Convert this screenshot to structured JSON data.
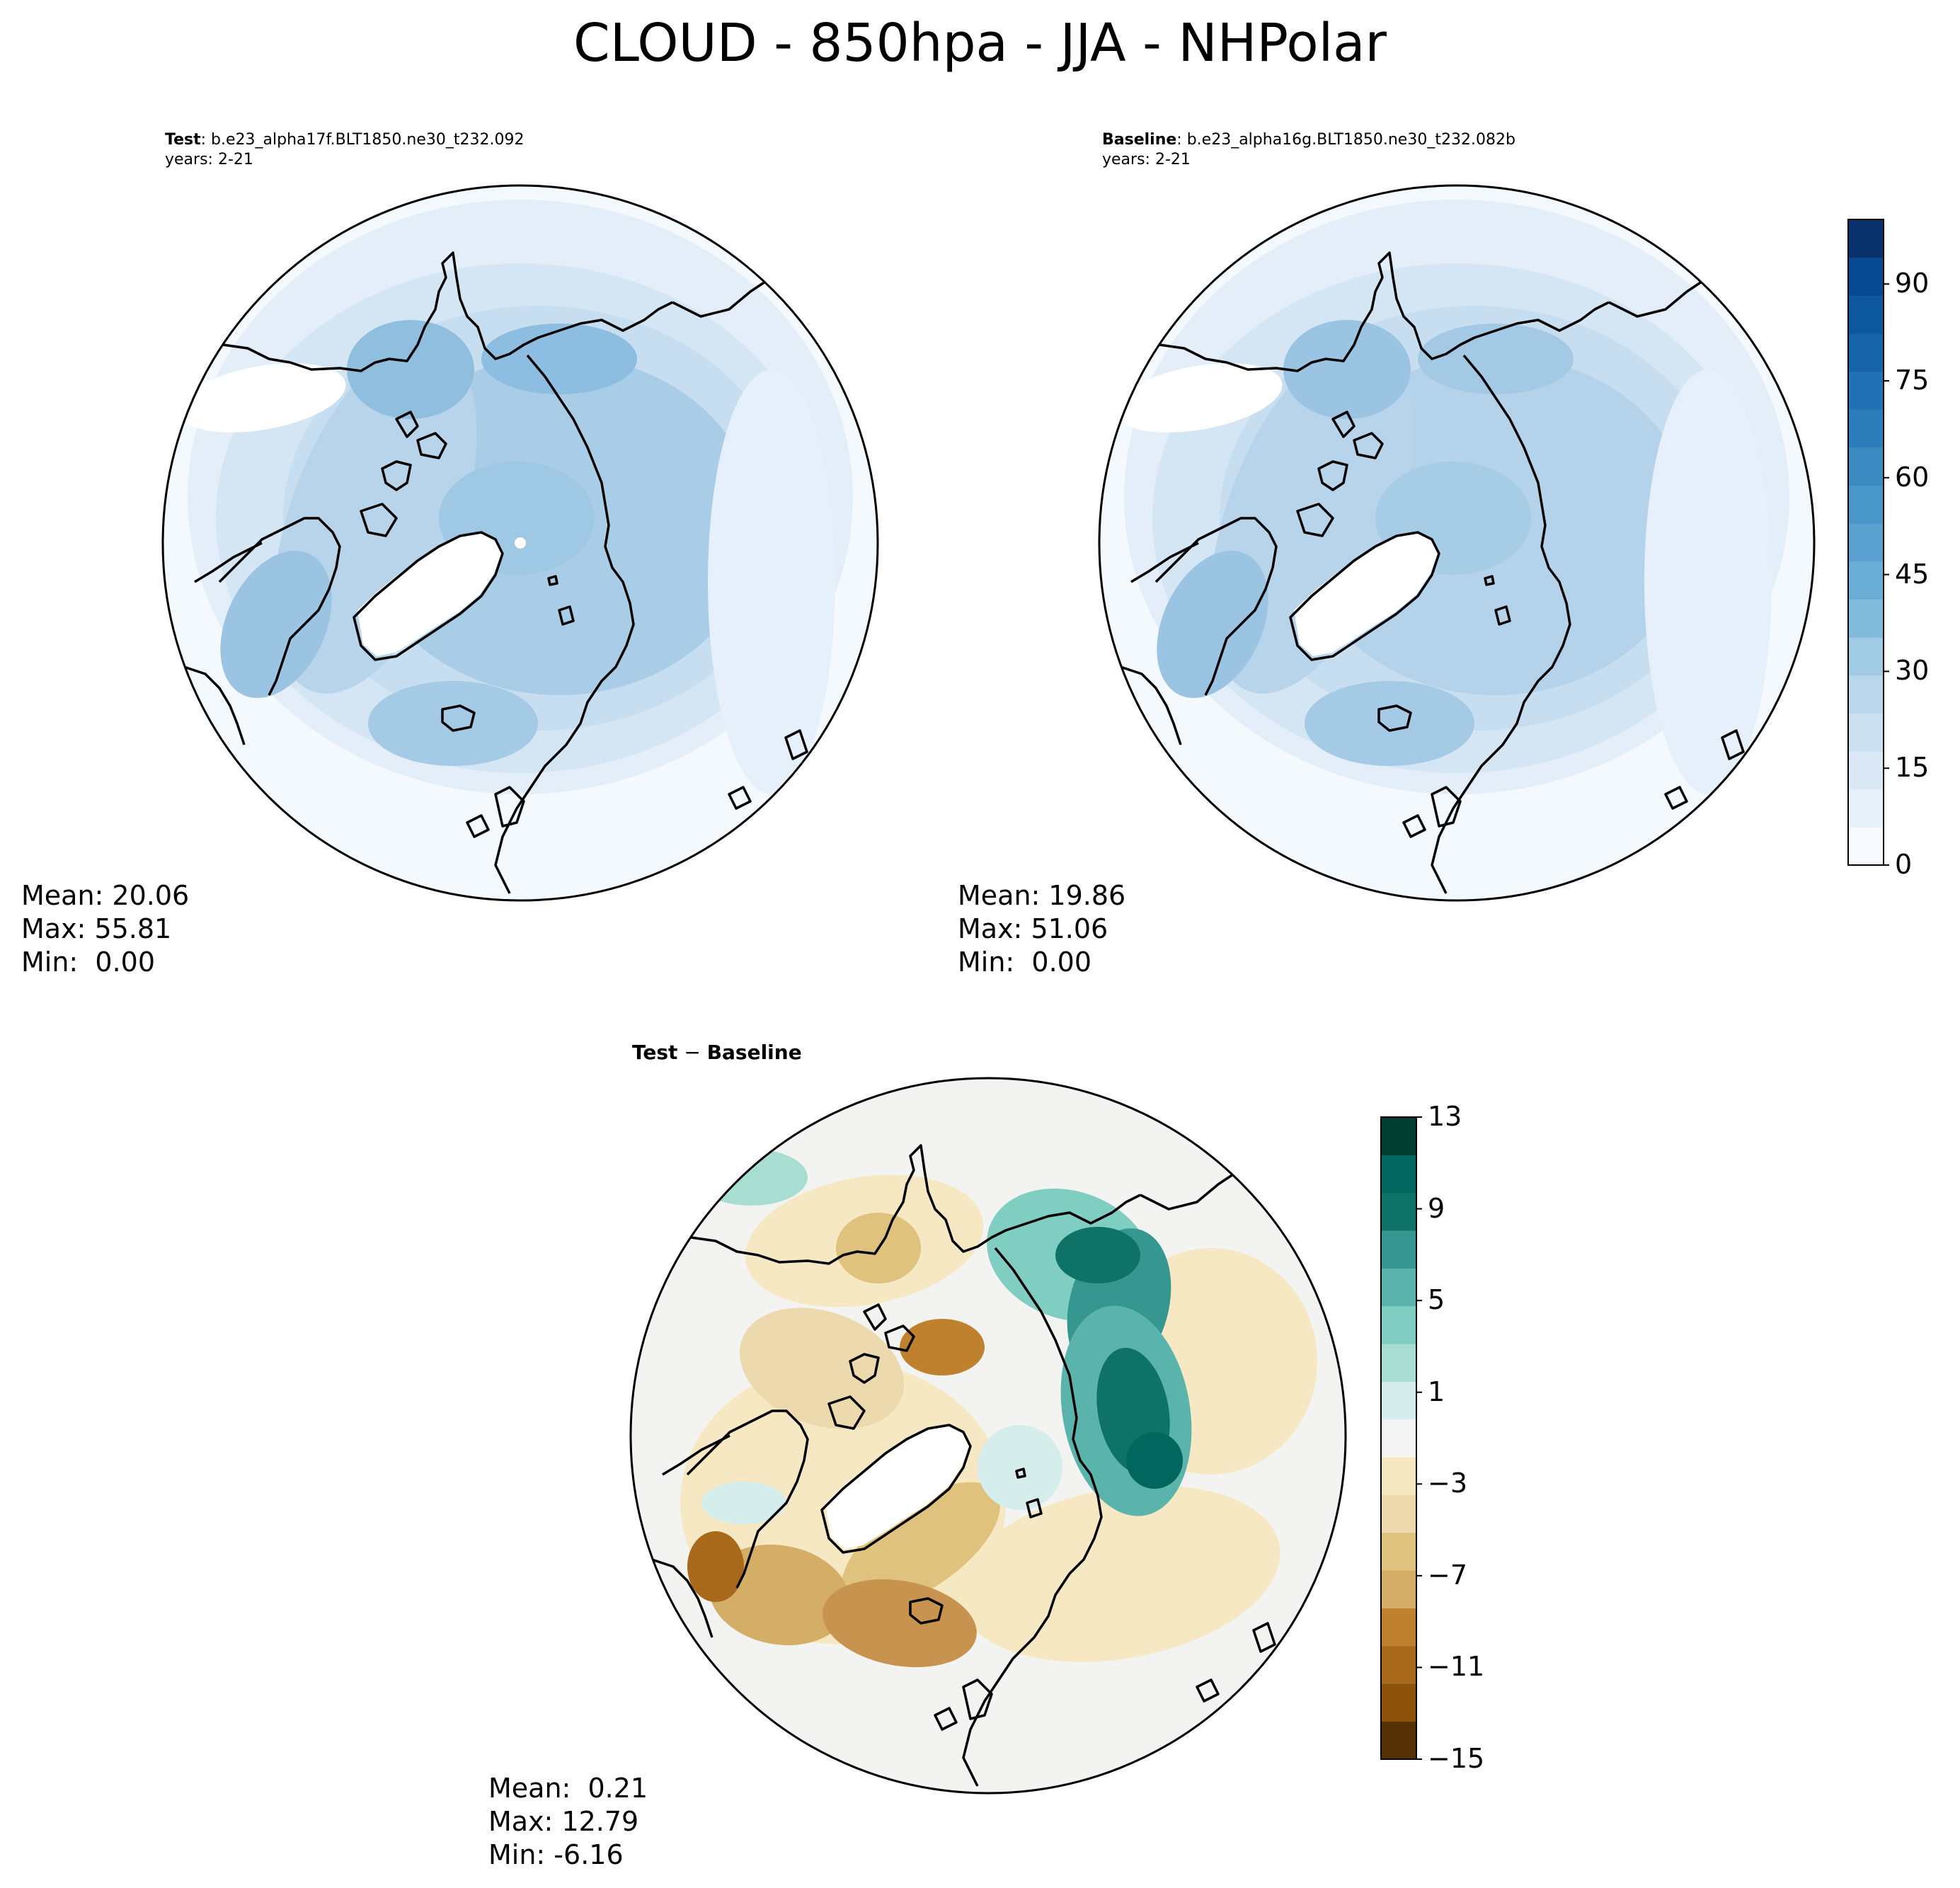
{
  "title": "CLOUD - 850hpa - JJA - NHPolar",
  "panels": {
    "test": {
      "label": "Test",
      "case": ": b.e23_alpha17f.BLT1850.ne30_t232.092",
      "years": "years: 2-21",
      "mean": "Mean: 20.06",
      "max": "Max: 55.81",
      "min": "Min:  0.00"
    },
    "baseline": {
      "label": "Baseline",
      "case": ": b.e23_alpha16g.BLT1850.ne30_t232.082b",
      "years": "years: 2-21",
      "mean": "Mean: 19.86",
      "max": "Max: 51.06",
      "min": "Min:  0.00"
    },
    "diff": {
      "title_a": "Test",
      "title_op": " − ",
      "title_b": "Baseline",
      "mean": "Mean:  0.21",
      "max": "Max: 12.79",
      "min": "Min: -6.16"
    }
  },
  "colorbars": {
    "abs": {
      "ticks": [
        "0",
        "15",
        "30",
        "45",
        "60",
        "75",
        "90"
      ],
      "tick_values": [
        0,
        15,
        30,
        45,
        60,
        75,
        90
      ],
      "range": [
        0,
        100
      ],
      "colormap": "Blues",
      "colors": [
        "#f7fbff",
        "#e8f1fa",
        "#dbe9f6",
        "#cde0f2",
        "#bad6eb",
        "#a0cbe2",
        "#82badb",
        "#6aaed6",
        "#5aa1cf",
        "#4a97c9",
        "#3b8bc2",
        "#2d7dbb",
        "#2171b5",
        "#1764ab",
        "#0d579f",
        "#084a91",
        "#08306b"
      ]
    },
    "diff": {
      "ticks": [
        "13",
        "9",
        "5",
        "1",
        "−3",
        "−7",
        "−11",
        "−15"
      ],
      "tick_values": [
        13,
        9,
        5,
        1,
        -3,
        -7,
        -11,
        -15
      ],
      "range": [
        -15,
        13
      ],
      "colormap": "BrBG",
      "colors": [
        "#543005",
        "#8c510a",
        "#a86a1a",
        "#bf812d",
        "#d4ad67",
        "#dfc27d",
        "#ecd9ae",
        "#f6e8c3",
        "#f5f5f5",
        "#d6eeeb",
        "#a8ddd2",
        "#80cdc1",
        "#5ab4ac",
        "#35978f",
        "#0e7266",
        "#01665e",
        "#003c30"
      ]
    }
  },
  "map": {
    "projection": "North Polar Stereographic",
    "coastline_color": "#000000",
    "land_mask_color": "#ffffff"
  }
}
